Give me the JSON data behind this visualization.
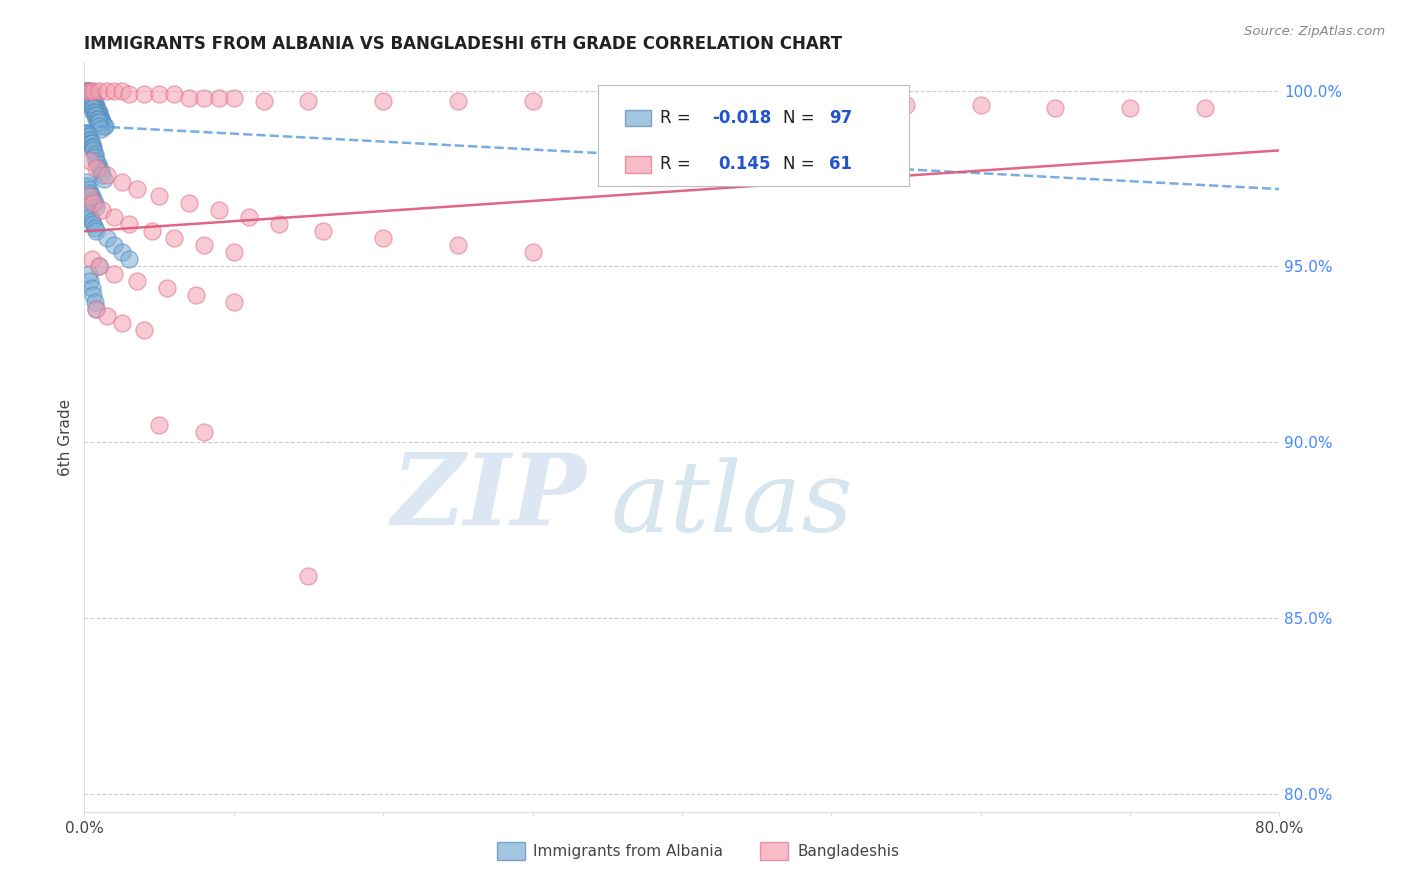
{
  "title": "IMMIGRANTS FROM ALBANIA VS BANGLADESHI 6TH GRADE CORRELATION CHART",
  "source": "Source: ZipAtlas.com",
  "ylabel": "6th Grade",
  "right_yticks": [
    1.0,
    0.95,
    0.9,
    0.85,
    0.8
  ],
  "right_yticklabels": [
    "100.0%",
    "95.0%",
    "90.0%",
    "85.0%",
    "80.0%"
  ],
  "blue_color": "#7bafd4",
  "blue_edge_color": "#5588bb",
  "pink_color": "#f4a0b0",
  "pink_edge_color": "#e07090",
  "trend_blue_color": "#5599dd",
  "trend_pink_color": "#dd5577",
  "watermark_zip_color": "#c8dff0",
  "watermark_atlas_color": "#b8cfe0",
  "xlim": [
    0.0,
    0.8
  ],
  "ylim": [
    0.795,
    1.008
  ],
  "xticks": [
    0.0,
    0.1,
    0.2,
    0.3,
    0.4,
    0.5,
    0.6,
    0.7,
    0.8
  ],
  "xticklabels": [
    "0.0%",
    "",
    "",
    "",
    "",
    "",
    "",
    "",
    "80.0%"
  ],
  "blue_trend_x": [
    0.0,
    0.8
  ],
  "blue_trend_y": [
    0.99,
    0.972
  ],
  "pink_trend_x": [
    0.0,
    0.8
  ],
  "pink_trend_y": [
    0.96,
    0.983
  ],
  "blue_scatter_x": [
    0.001,
    0.002,
    0.002,
    0.003,
    0.003,
    0.003,
    0.004,
    0.004,
    0.004,
    0.005,
    0.005,
    0.005,
    0.006,
    0.006,
    0.007,
    0.007,
    0.008,
    0.008,
    0.008,
    0.009,
    0.009,
    0.01,
    0.01,
    0.01,
    0.011,
    0.011,
    0.012,
    0.012,
    0.013,
    0.014,
    0.001,
    0.002,
    0.002,
    0.003,
    0.003,
    0.004,
    0.004,
    0.005,
    0.005,
    0.006,
    0.006,
    0.007,
    0.007,
    0.008,
    0.008,
    0.009,
    0.009,
    0.01,
    0.01,
    0.011,
    0.001,
    0.002,
    0.002,
    0.003,
    0.003,
    0.004,
    0.004,
    0.005,
    0.005,
    0.006,
    0.006,
    0.007,
    0.007,
    0.008,
    0.009,
    0.01,
    0.011,
    0.012,
    0.013,
    0.001,
    0.002,
    0.003,
    0.004,
    0.005,
    0.006,
    0.007,
    0.008,
    0.002,
    0.003,
    0.004,
    0.005,
    0.006,
    0.007,
    0.008,
    0.015,
    0.02,
    0.025,
    0.03,
    0.01,
    0.003,
    0.004,
    0.005,
    0.006,
    0.007,
    0.008
  ],
  "blue_scatter_y": [
    1.0,
    1.0,
    1.0,
    1.0,
    1.0,
    0.999,
    0.999,
    0.999,
    0.998,
    0.998,
    0.998,
    0.997,
    0.997,
    0.997,
    0.996,
    0.996,
    0.996,
    0.995,
    0.995,
    0.994,
    0.994,
    0.994,
    0.993,
    0.993,
    0.992,
    0.992,
    0.991,
    0.991,
    0.99,
    0.99,
    0.999,
    0.999,
    0.998,
    0.998,
    0.997,
    0.997,
    0.996,
    0.996,
    0.995,
    0.995,
    0.994,
    0.994,
    0.993,
    0.993,
    0.992,
    0.992,
    0.991,
    0.991,
    0.99,
    0.989,
    0.988,
    0.988,
    0.987,
    0.987,
    0.986,
    0.986,
    0.985,
    0.985,
    0.984,
    0.984,
    0.983,
    0.982,
    0.981,
    0.98,
    0.979,
    0.978,
    0.977,
    0.976,
    0.975,
    0.974,
    0.973,
    0.972,
    0.971,
    0.97,
    0.969,
    0.968,
    0.967,
    0.966,
    0.965,
    0.964,
    0.963,
    0.962,
    0.961,
    0.96,
    0.958,
    0.956,
    0.954,
    0.952,
    0.95,
    0.948,
    0.946,
    0.944,
    0.942,
    0.94,
    0.938
  ],
  "pink_scatter_x": [
    0.002,
    0.004,
    0.006,
    0.01,
    0.015,
    0.02,
    0.025,
    0.03,
    0.04,
    0.05,
    0.06,
    0.07,
    0.08,
    0.09,
    0.1,
    0.12,
    0.15,
    0.2,
    0.25,
    0.3,
    0.35,
    0.4,
    0.45,
    0.5,
    0.55,
    0.6,
    0.65,
    0.7,
    0.75,
    0.004,
    0.008,
    0.015,
    0.025,
    0.035,
    0.05,
    0.07,
    0.09,
    0.11,
    0.13,
    0.16,
    0.2,
    0.25,
    0.3,
    0.003,
    0.006,
    0.012,
    0.02,
    0.03,
    0.045,
    0.06,
    0.08,
    0.1,
    0.005,
    0.01,
    0.02,
    0.035,
    0.055,
    0.075,
    0.1,
    0.008,
    0.015,
    0.025,
    0.04,
    0.05,
    0.08,
    0.15
  ],
  "pink_scatter_y": [
    1.0,
    1.0,
    1.0,
    1.0,
    1.0,
    1.0,
    1.0,
    0.999,
    0.999,
    0.999,
    0.999,
    0.998,
    0.998,
    0.998,
    0.998,
    0.997,
    0.997,
    0.997,
    0.997,
    0.997,
    0.997,
    0.996,
    0.996,
    0.996,
    0.996,
    0.996,
    0.995,
    0.995,
    0.995,
    0.98,
    0.978,
    0.976,
    0.974,
    0.972,
    0.97,
    0.968,
    0.966,
    0.964,
    0.962,
    0.96,
    0.958,
    0.956,
    0.954,
    0.97,
    0.968,
    0.966,
    0.964,
    0.962,
    0.96,
    0.958,
    0.956,
    0.954,
    0.952,
    0.95,
    0.948,
    0.946,
    0.944,
    0.942,
    0.94,
    0.938,
    0.936,
    0.934,
    0.932,
    0.905,
    0.903,
    0.862
  ]
}
